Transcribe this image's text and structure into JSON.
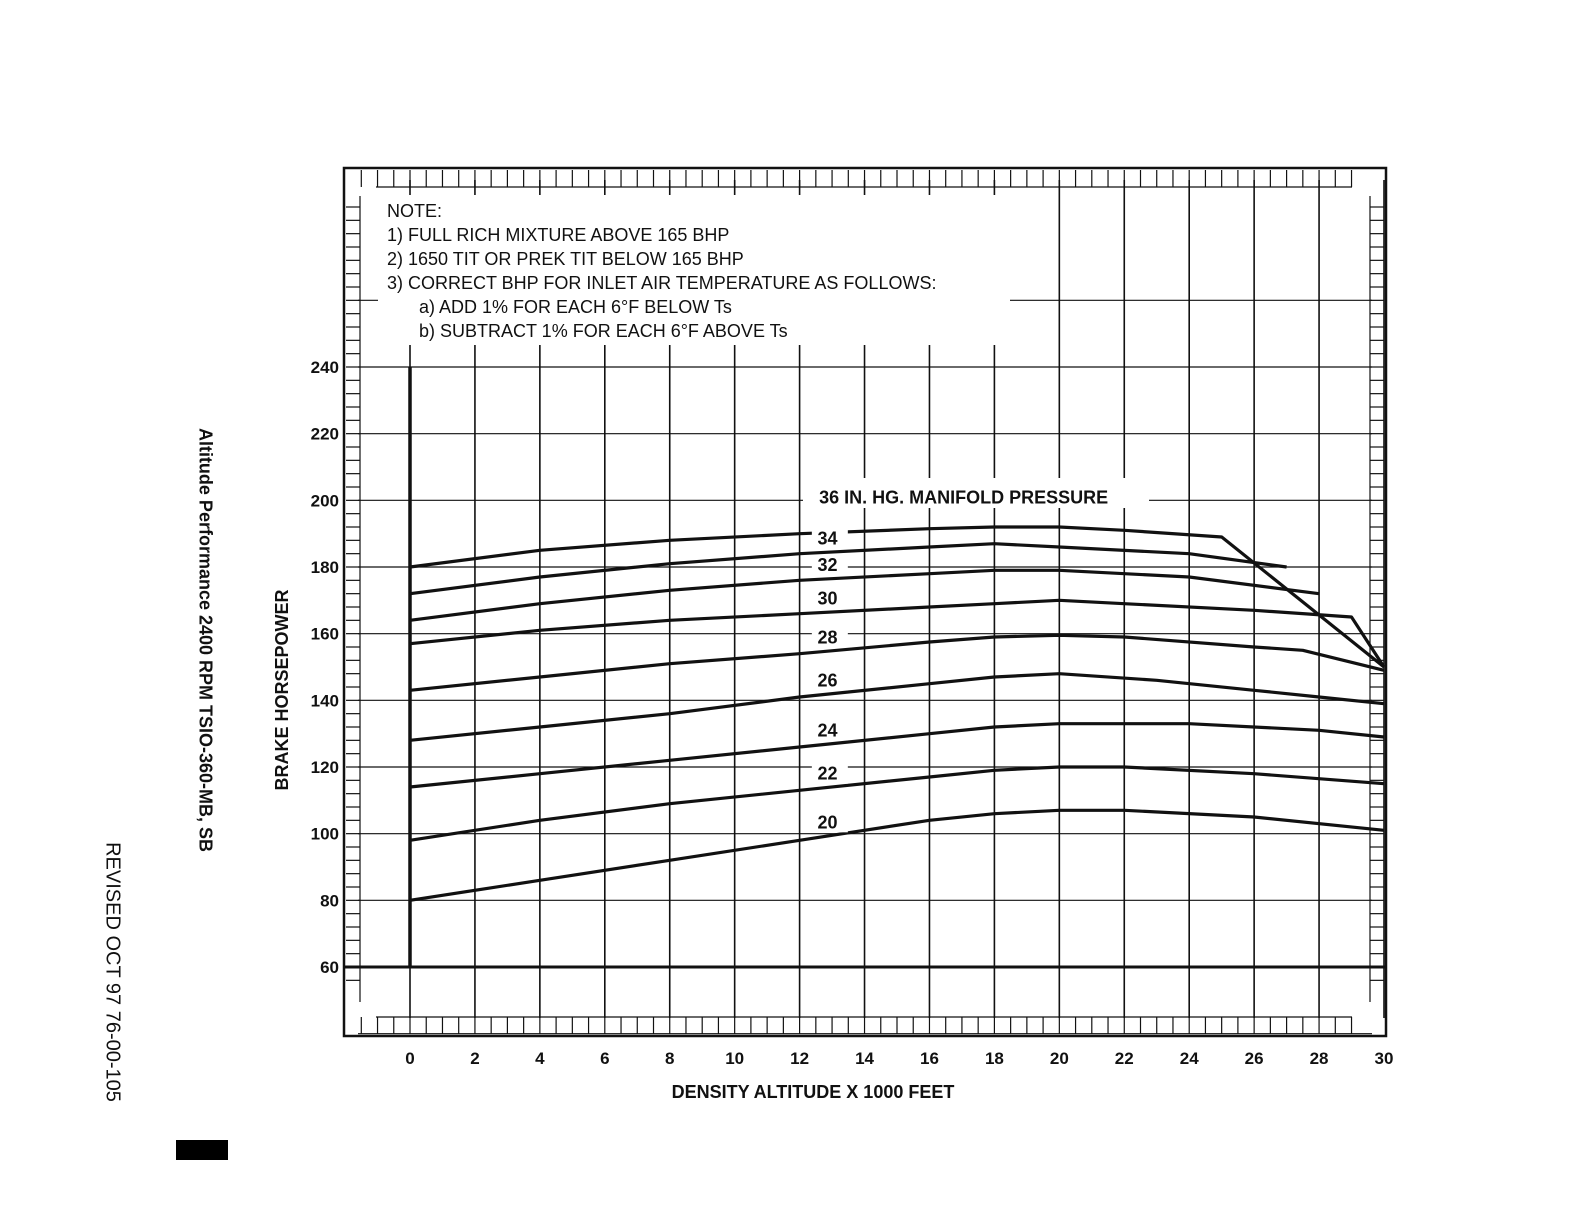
{
  "side_title": "Altitude Performance 2400 RPM TSIO-360-MB, SB",
  "revised": "REVISED OCT 97  76-00-105",
  "colors": {
    "ink": "#111111",
    "paper": "#ffffff"
  },
  "chart_data": {
    "type": "line",
    "title": "",
    "xlabel": "DENSITY ALTITUDE X 1000 FEET",
    "ylabel": "BRAKE HORSEPOWER",
    "xlim": [
      0,
      30
    ],
    "ylim": [
      60,
      240
    ],
    "x_ticks": [
      "0",
      "2",
      "4",
      "6",
      "8",
      "10",
      "12",
      "14",
      "16",
      "18",
      "20",
      "22",
      "24",
      "26",
      "28",
      "30"
    ],
    "y_ticks": [
      "60",
      "80",
      "100",
      "120",
      "140",
      "160",
      "180",
      "200",
      "220",
      "240"
    ],
    "notes": [
      "NOTE:",
      "1)  FULL RICH MIXTURE ABOVE 165 BHP",
      "2)  1650 TIT OR PREK TIT BELOW 165 BHP",
      "3)  CORRECT BHP FOR INLET AIR TEMPERATURE AS FOLLOWS:",
      "a)  ADD 1% FOR EACH 6°F BELOW Ts",
      "b)  SUBTRACT 1% FOR EACH 6°F ABOVE Ts"
    ],
    "series": [
      {
        "name": "36 IN. HG. MANIFOLD PRESSURE",
        "label": "36 IN. HG. MANIFOLD PRESSURE",
        "x": [
          0,
          4,
          8,
          12,
          16,
          18,
          20,
          22,
          25,
          30
        ],
        "values": [
          180,
          185,
          188,
          190,
          191.5,
          192,
          192,
          191,
          189,
          150
        ]
      },
      {
        "name": "34 IN. HG.",
        "label": "34",
        "x": [
          0,
          4,
          8,
          12,
          16,
          18,
          20,
          24,
          27
        ],
        "values": [
          172,
          177,
          181,
          184,
          186,
          187,
          186,
          184,
          180
        ]
      },
      {
        "name": "32 IN. HG.",
        "label": "32",
        "x": [
          0,
          4,
          8,
          12,
          16,
          18,
          20,
          24,
          28
        ],
        "values": [
          164,
          169,
          173,
          176,
          178,
          179,
          179,
          177,
          172
        ]
      },
      {
        "name": "30 IN. HG.",
        "label": "30",
        "x": [
          0,
          4,
          8,
          12,
          16,
          18,
          20,
          22,
          26,
          29,
          30
        ],
        "values": [
          157,
          161,
          164,
          166,
          168,
          169,
          170,
          169,
          167,
          165,
          150
        ]
      },
      {
        "name": "28 IN. HG.",
        "label": "28",
        "x": [
          0,
          4,
          8,
          12,
          16,
          18,
          20,
          22,
          26,
          27.5,
          30
        ],
        "values": [
          143,
          147,
          151,
          154,
          157.5,
          159,
          159.5,
          159,
          156,
          155,
          149
        ]
      },
      {
        "name": "26 IN. HG.",
        "label": "26",
        "x": [
          0,
          4,
          8,
          12,
          16,
          18,
          20,
          23,
          26,
          28,
          30
        ],
        "values": [
          128,
          132,
          136,
          141,
          145,
          147,
          148,
          146,
          143,
          141,
          139
        ]
      },
      {
        "name": "24 IN. HG.",
        "label": "24",
        "x": [
          0,
          4,
          8,
          12,
          16,
          18,
          20,
          22,
          24,
          28,
          30
        ],
        "values": [
          114,
          118,
          122,
          126,
          130,
          132,
          133,
          133,
          133,
          131,
          129
        ]
      },
      {
        "name": "22 IN. HG.",
        "label": "22",
        "x": [
          0,
          4,
          8,
          12,
          16,
          18,
          20,
          22,
          26,
          30
        ],
        "values": [
          98,
          104,
          109,
          113,
          117,
          119,
          120,
          120,
          118,
          115
        ]
      },
      {
        "name": "20 IN. HG.",
        "label": "20",
        "x": [
          0,
          4,
          8,
          12,
          16,
          18,
          20,
          22,
          26,
          30
        ],
        "values": [
          80,
          86,
          92,
          98,
          104,
          106,
          107,
          107,
          105,
          101
        ]
      }
    ]
  }
}
